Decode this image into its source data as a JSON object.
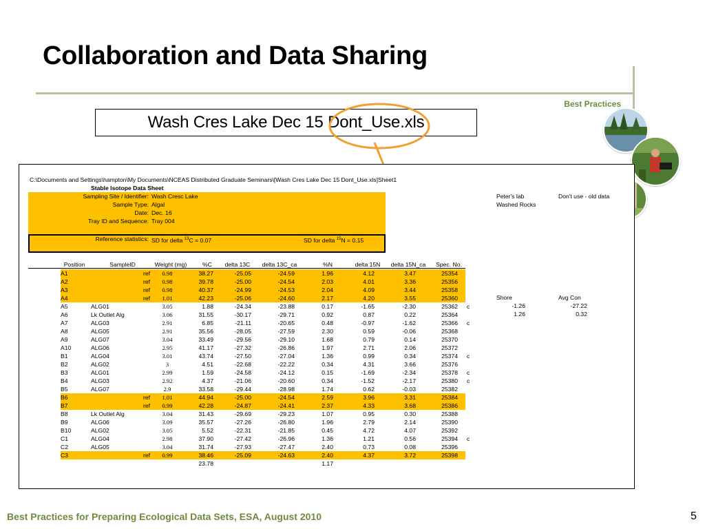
{
  "slide": {
    "title": "Collaboration and Data Sharing",
    "section_label": "Best Practices",
    "file_name": "Wash Cres Lake Dec 15 Dont_Use.xls",
    "footer": "Best Practices for Preparing Ecological Data Sets, ESA, August 2010",
    "page_number": "5",
    "accent_color": "#6e8b3d",
    "highlight_color": "#ffc000",
    "ellipse_color": "#f0a030"
  },
  "sheet": {
    "path": "C:\\Documents and Settings\\hampton\\My Documents\\NCEAS Distributed Graduate Seminars\\[Wash Cres Lake Dec 15 Dont_Use.xls]Sheet1",
    "heading": "Stable Isotope Data Sheet",
    "meta": [
      {
        "label": "Sampling Site / Identifier:",
        "value": "Wash Cresc Lake"
      },
      {
        "label": "Sample Type:",
        "value": "Algal"
      },
      {
        "label": "Date:",
        "value": "Dec. 16"
      },
      {
        "label": "Tray ID and Sequence:",
        "value": "Tray 004"
      }
    ],
    "side_notes": {
      "peters_lab": "Peter's lab",
      "dont_use": "Don't use - old data",
      "washed_rocks": "Washed Rocks"
    },
    "reference": {
      "label": "Reference statistics:",
      "sd_c_prefix": "SD for delta ",
      "sd_c_sup": "13",
      "sd_c_suffix": "C = 0.07",
      "sd_n_prefix": "SD for delta ",
      "sd_n_sup": "15",
      "sd_n_suffix": "N = 0.15"
    },
    "columns": [
      "Position",
      "SampleID",
      "Weight (mg)",
      "%C",
      "delta 13C",
      "delta 13C_ca",
      "%N",
      "delta 15N",
      "delta 15N_ca",
      "Spec. No."
    ],
    "rows": [
      {
        "pos": "A1",
        "id": "ref",
        "wt": "0.98",
        "pc": "38.27",
        "d13c": "-25.05",
        "d13cca": "-24.59",
        "pn": "1.96",
        "d15n": "4.12",
        "d15nca": "3.47",
        "spec": "25354",
        "flag": "",
        "hl": true
      },
      {
        "pos": "A2",
        "id": "ref",
        "wt": "0.98",
        "pc": "39.78",
        "d13c": "-25.00",
        "d13cca": "-24.54",
        "pn": "2.03",
        "d15n": "4.01",
        "d15nca": "3.36",
        "spec": "25356",
        "flag": "",
        "hl": true
      },
      {
        "pos": "A3",
        "id": "ref",
        "wt": "0.98",
        "pc": "40.37",
        "d13c": "-24.99",
        "d13cca": "-24.53",
        "pn": "2.04",
        "d15n": "4.09",
        "d15nca": "3.44",
        "spec": "25358",
        "flag": "",
        "hl": true
      },
      {
        "pos": "A4",
        "id": "ref",
        "wt": "1.01",
        "pc": "42.23",
        "d13c": "-25.06",
        "d13cca": "-24.60",
        "pn": "2.17",
        "d15n": "4.20",
        "d15nca": "3.55",
        "spec": "25360",
        "flag": "",
        "hl": true
      },
      {
        "pos": "A5",
        "id": "ALG01",
        "wt": "3.05",
        "pc": "1.88",
        "d13c": "-24.34",
        "d13cca": "-23.88",
        "pn": "0.17",
        "d15n": "-1.65",
        "d15nca": "-2.30",
        "spec": "25362",
        "flag": "c",
        "hl": false
      },
      {
        "pos": "A6",
        "id": "Lk Outlet Alg",
        "wt": "3.06",
        "pc": "31.55",
        "d13c": "-30.17",
        "d13cca": "-29.71",
        "pn": "0.92",
        "d15n": "0.87",
        "d15nca": "0.22",
        "spec": "25364",
        "flag": "",
        "hl": false
      },
      {
        "pos": "A7",
        "id": "ALG03",
        "wt": "2.91",
        "pc": "6.85",
        "d13c": "-21.11",
        "d13cca": "-20.65",
        "pn": "0.48",
        "d15n": "-0.97",
        "d15nca": "-1.62",
        "spec": "25366",
        "flag": "c",
        "hl": false
      },
      {
        "pos": "A8",
        "id": "ALG05",
        "wt": "2.91",
        "pc": "35.56",
        "d13c": "-28.05",
        "d13cca": "-27.59",
        "pn": "2.30",
        "d15n": "0.59",
        "d15nca": "-0.06",
        "spec": "25368",
        "flag": "",
        "hl": false
      },
      {
        "pos": "A9",
        "id": "ALG07",
        "wt": "3.04",
        "pc": "33.49",
        "d13c": "-29.56",
        "d13cca": "-29.10",
        "pn": "1.68",
        "d15n": "0.79",
        "d15nca": "0.14",
        "spec": "25370",
        "flag": "",
        "hl": false
      },
      {
        "pos": "A10",
        "id": "ALG06",
        "wt": "2.95",
        "pc": "41.17",
        "d13c": "-27.32",
        "d13cca": "-26.86",
        "pn": "1.97",
        "d15n": "2.71",
        "d15nca": "2.06",
        "spec": "25372",
        "flag": "",
        "hl": false
      },
      {
        "pos": "B1",
        "id": "ALG04",
        "wt": "3.01",
        "pc": "43.74",
        "d13c": "-27.50",
        "d13cca": "-27.04",
        "pn": "1.36",
        "d15n": "0.99",
        "d15nca": "0.34",
        "spec": "25374",
        "flag": "c",
        "hl": false
      },
      {
        "pos": "B2",
        "id": "ALG02",
        "wt": "3",
        "pc": "4.51",
        "d13c": "-22.68",
        "d13cca": "-22.22",
        "pn": "0.34",
        "d15n": "4.31",
        "d15nca": "3.66",
        "spec": "25376",
        "flag": "",
        "hl": false
      },
      {
        "pos": "B3",
        "id": "ALG01",
        "wt": "2.99",
        "pc": "1.59",
        "d13c": "-24.58",
        "d13cca": "-24.12",
        "pn": "0.15",
        "d15n": "-1.69",
        "d15nca": "-2.34",
        "spec": "25378",
        "flag": "c",
        "hl": false
      },
      {
        "pos": "B4",
        "id": "ALG03",
        "wt": "2.92",
        "pc": "4.37",
        "d13c": "-21.06",
        "d13cca": "-20.60",
        "pn": "0.34",
        "d15n": "-1.52",
        "d15nca": "-2.17",
        "spec": "25380",
        "flag": "c",
        "hl": false
      },
      {
        "pos": "B5",
        "id": "ALG07",
        "wt": "2.9",
        "pc": "33.58",
        "d13c": "-29.44",
        "d13cca": "-28.98",
        "pn": "1.74",
        "d15n": "0.62",
        "d15nca": "-0.03",
        "spec": "25382",
        "flag": "",
        "hl": false
      },
      {
        "pos": "B6",
        "id": "ref",
        "wt": "1.01",
        "pc": "44.94",
        "d13c": "-25.00",
        "d13cca": "-24.54",
        "pn": "2.59",
        "d15n": "3.96",
        "d15nca": "3.31",
        "spec": "25384",
        "flag": "",
        "hl": true
      },
      {
        "pos": "B7",
        "id": "ref",
        "wt": "0.99",
        "pc": "42.28",
        "d13c": "-24.87",
        "d13cca": "-24.41",
        "pn": "2.37",
        "d15n": "4.33",
        "d15nca": "3.68",
        "spec": "25386",
        "flag": "",
        "hl": true
      },
      {
        "pos": "B8",
        "id": "Lk Outlet Alg",
        "wt": "3.04",
        "pc": "31.43",
        "d13c": "-29.69",
        "d13cca": "-29.23",
        "pn": "1.07",
        "d15n": "0.95",
        "d15nca": "0.30",
        "spec": "25388",
        "flag": "",
        "hl": false
      },
      {
        "pos": "B9",
        "id": "ALG06",
        "wt": "3.09",
        "pc": "35.57",
        "d13c": "-27.26",
        "d13cca": "-26.80",
        "pn": "1.96",
        "d15n": "2.79",
        "d15nca": "2.14",
        "spec": "25390",
        "flag": "",
        "hl": false
      },
      {
        "pos": "B10",
        "id": "ALG02",
        "wt": "3.05",
        "pc": "5.52",
        "d13c": "-22.31",
        "d13cca": "-21.85",
        "pn": "0.45",
        "d15n": "4.72",
        "d15nca": "4.07",
        "spec": "25392",
        "flag": "",
        "hl": false
      },
      {
        "pos": "C1",
        "id": "ALG04",
        "wt": "2.98",
        "pc": "37.90",
        "d13c": "-27.42",
        "d13cca": "-26.96",
        "pn": "1.36",
        "d15n": "1.21",
        "d15nca": "0.56",
        "spec": "25394",
        "flag": "c",
        "hl": false
      },
      {
        "pos": "C2",
        "id": "ALG05",
        "wt": "3.04",
        "pc": "31.74",
        "d13c": "-27.93",
        "d13cca": "-27.47",
        "pn": "2.40",
        "d15n": "0.73",
        "d15nca": "0.08",
        "spec": "25396",
        "flag": "",
        "hl": false
      },
      {
        "pos": "C3",
        "id": "ref",
        "wt": "0.99",
        "pc": "38.46",
        "d13c": "-25.09",
        "d13cca": "-24.63",
        "pn": "2.40",
        "d15n": "4.37",
        "d15nca": "3.72",
        "spec": "25398",
        "flag": "",
        "hl": true
      }
    ],
    "averages": {
      "pc": "23.78",
      "pn": "1.17"
    },
    "summary": {
      "shore_label": "Shore",
      "avg_con_label": "Avg Con",
      "shore_values": [
        "-1.26",
        "1.26"
      ],
      "avg_con_values": [
        "-27.22",
        "0.32"
      ]
    }
  }
}
